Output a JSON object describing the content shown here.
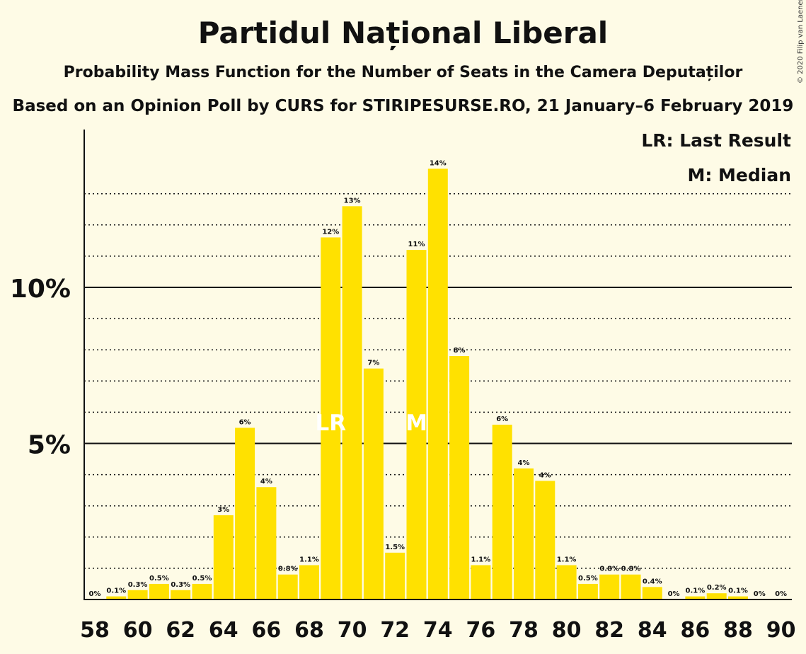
{
  "title": "Partidul Național Liberal",
  "subtitle": "Probability Mass Function for the Number of Seats in the Camera Deputaților",
  "source": "Based on an Opinion Poll by CURS for STIRIPESURSE.RO, 21 January–6 February 2019",
  "copyright": "© 2020 Filip van Laenen",
  "legend": {
    "last_result": "LR: Last Result",
    "median": "M: Median"
  },
  "colors": {
    "bar": "#ffe100",
    "background": "#fefbe6",
    "marker_text": "#ffffff"
  },
  "chart_data": {
    "type": "bar",
    "x": [
      58,
      59,
      60,
      61,
      62,
      63,
      64,
      65,
      66,
      67,
      68,
      69,
      70,
      71,
      72,
      73,
      74,
      75,
      76,
      77,
      78,
      79,
      80,
      81,
      82,
      83,
      84,
      85,
      86,
      87,
      88,
      89,
      90
    ],
    "values": [
      0,
      0.1,
      0.3,
      0.5,
      0.3,
      0.5,
      2.7,
      5.5,
      3.6,
      0.8,
      1.1,
      11.6,
      12.6,
      7.4,
      1.5,
      11.2,
      13.8,
      7.8,
      1.1,
      5.6,
      4.2,
      3.8,
      1.1,
      0.5,
      0.8,
      0.8,
      0.4,
      0,
      0.1,
      0.2,
      0.1,
      0,
      0
    ],
    "labels": [
      "0%",
      "0.1%",
      "0.3%",
      "0.5%",
      "0.3%",
      "0.5%",
      "3%",
      "6%",
      "4%",
      "0.8%",
      "1.1%",
      "12%",
      "13%",
      "7%",
      "1.5%",
      "11%",
      "14%",
      "8%",
      "1.1%",
      "6%",
      "4%",
      "4%",
      "1.1%",
      "0.5%",
      "0.8%",
      "0.8%",
      "0.4%",
      "0%",
      "0.1%",
      "0.2%",
      "0.1%",
      "0%",
      "0%"
    ],
    "x_tick_labels": [
      "58",
      "60",
      "62",
      "64",
      "66",
      "68",
      "70",
      "72",
      "74",
      "76",
      "78",
      "80",
      "82",
      "84",
      "86",
      "88",
      "90"
    ],
    "y_ticks": [
      {
        "value": 5,
        "label": "5%"
      },
      {
        "value": 10,
        "label": "10%"
      }
    ],
    "ylim": [
      0,
      15
    ],
    "grid": true,
    "markers": [
      {
        "x": 69,
        "label": "LR"
      },
      {
        "x": 73,
        "label": "M"
      }
    ],
    "legend_position": "top-right"
  }
}
